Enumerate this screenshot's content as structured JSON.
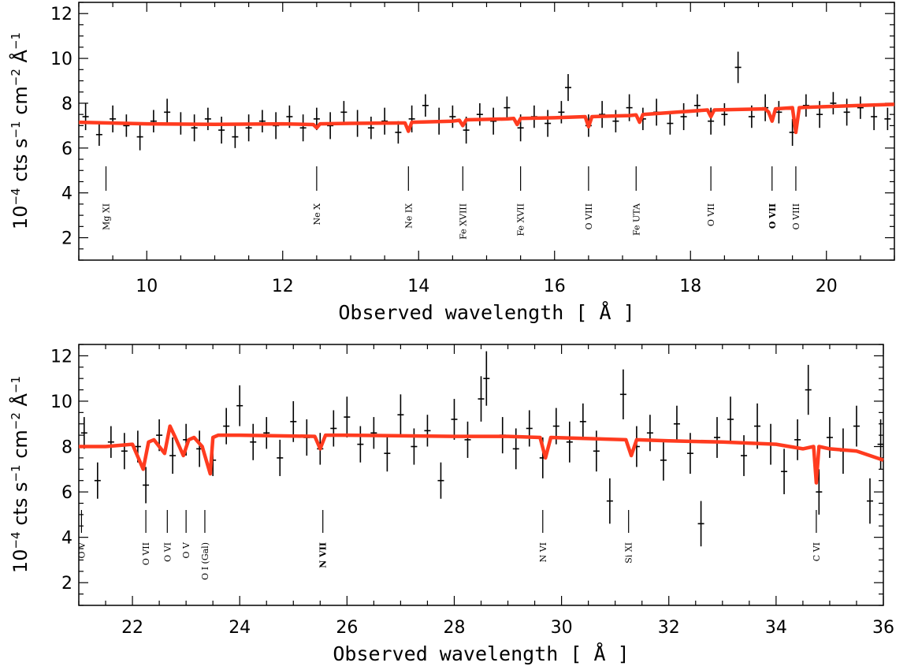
{
  "chart_data": [
    {
      "type": "scatter",
      "xlabel": "Observed wavelength [ Å ]",
      "ylabel": {
        "text": "10",
        "exp": "−4",
        "rest": "cts s",
        "s_exp": "−1",
        "rest2": "cm",
        "cm_exp": "−2",
        "rest3": "Å",
        "a_exp": "−1"
      },
      "xlim": [
        9,
        21
      ],
      "ylim": [
        1,
        12.5
      ],
      "xticks": [
        10,
        12,
        14,
        16,
        18,
        20
      ],
      "yticks": [
        2,
        4,
        6,
        8,
        10,
        12
      ],
      "series": [
        {
          "style": "data-with-errorbars",
          "color": "#000000",
          "x": [
            9.1,
            9.3,
            9.5,
            9.7,
            9.9,
            10.1,
            10.3,
            10.5,
            10.7,
            10.9,
            11.1,
            11.3,
            11.5,
            11.7,
            11.9,
            12.1,
            12.3,
            12.5,
            12.7,
            12.9,
            13.1,
            13.3,
            13.5,
            13.7,
            13.9,
            14.1,
            14.3,
            14.5,
            14.7,
            14.9,
            15.1,
            15.3,
            15.5,
            15.7,
            15.9,
            16.1,
            16.2,
            16.5,
            16.7,
            16.9,
            17.1,
            17.3,
            17.5,
            17.7,
            17.9,
            18.1,
            18.3,
            18.5,
            18.7,
            18.9,
            19.1,
            19.3,
            19.5,
            19.7,
            19.9,
            20.1,
            20.3,
            20.5,
            20.7,
            20.9
          ],
          "y": [
            7.4,
            6.6,
            7.3,
            7.0,
            6.5,
            7.2,
            7.6,
            7.1,
            6.9,
            7.3,
            6.8,
            6.5,
            6.9,
            7.2,
            7.0,
            7.4,
            6.9,
            7.3,
            7.0,
            7.6,
            7.1,
            6.9,
            7.2,
            6.7,
            7.3,
            7.9,
            7.2,
            7.4,
            6.8,
            7.5,
            7.2,
            7.8,
            6.9,
            7.4,
            7.1,
            7.6,
            8.7,
            7.0,
            7.5,
            7.2,
            7.8,
            7.3,
            7.6,
            7.1,
            7.4,
            7.9,
            7.2,
            7.5,
            9.6,
            7.4,
            7.8,
            7.6,
            6.7,
            7.9,
            7.5,
            8.0,
            7.6,
            7.8,
            7.4,
            7.3
          ],
          "err": [
            0.6,
            0.5,
            0.6,
            0.5,
            0.6,
            0.5,
            0.6,
            0.5,
            0.6,
            0.5,
            0.6,
            0.5,
            0.6,
            0.5,
            0.6,
            0.5,
            0.6,
            0.5,
            0.6,
            0.5,
            0.6,
            0.5,
            0.6,
            0.5,
            0.6,
            0.5,
            0.6,
            0.5,
            0.6,
            0.5,
            0.6,
            0.5,
            0.6,
            0.5,
            0.6,
            0.5,
            0.6,
            0.5,
            0.6,
            0.5,
            0.6,
            0.5,
            0.6,
            0.5,
            0.6,
            0.5,
            0.6,
            0.5,
            0.7,
            0.5,
            0.6,
            0.5,
            0.6,
            0.5,
            0.6,
            0.5,
            0.6,
            0.5,
            0.6,
            0.5
          ]
        },
        {
          "style": "model-line",
          "color": "#ff3b1f",
          "x": [
            9.0,
            10.0,
            11.0,
            12.0,
            12.45,
            12.5,
            12.55,
            13.0,
            13.8,
            13.85,
            13.9,
            14.5,
            14.6,
            14.65,
            14.7,
            15.3,
            15.4,
            15.45,
            15.5,
            16.0,
            16.45,
            16.5,
            16.55,
            17.1,
            17.2,
            17.25,
            17.3,
            17.8,
            18.25,
            18.3,
            18.35,
            19.1,
            19.15,
            19.2,
            19.25,
            19.4,
            19.5,
            19.55,
            19.6,
            19.7,
            20.0,
            20.5,
            21.0
          ],
          "y": [
            7.15,
            7.08,
            7.06,
            7.08,
            7.05,
            6.9,
            7.08,
            7.1,
            7.12,
            6.75,
            7.15,
            7.2,
            7.24,
            7.0,
            7.26,
            7.3,
            7.32,
            7.05,
            7.32,
            7.35,
            7.4,
            6.95,
            7.4,
            7.45,
            7.48,
            7.15,
            7.5,
            7.6,
            7.7,
            7.4,
            7.7,
            7.75,
            7.6,
            7.2,
            7.75,
            7.78,
            7.8,
            6.7,
            7.8,
            7.82,
            7.85,
            7.9,
            7.95
          ]
        }
      ],
      "line_markers": [
        {
          "x": 9.4,
          "label": "Mg XI"
        },
        {
          "x": 12.5,
          "label": "Ne X"
        },
        {
          "x": 13.85,
          "label": "Ne IX"
        },
        {
          "x": 14.65,
          "label": "Fe XVIII"
        },
        {
          "x": 15.5,
          "label": "Fe XVII"
        },
        {
          "x": 16.5,
          "label": "O VIII"
        },
        {
          "x": 17.2,
          "label": "Fe UTA"
        },
        {
          "x": 18.3,
          "label": "O VII"
        },
        {
          "x": 19.2,
          "label": "O VII",
          "bold": true
        },
        {
          "x": 19.55,
          "label": "O VIII"
        }
      ]
    },
    {
      "type": "scatter",
      "xlabel": "Observed wavelength [ Å ]",
      "ylabel": {
        "text": "10",
        "exp": "−4",
        "rest": "cts s",
        "s_exp": "−1",
        "rest2": "cm",
        "cm_exp": "−2",
        "rest3": "Å",
        "a_exp": "−1"
      },
      "xlim": [
        21,
        36
      ],
      "ylim": [
        1,
        12.5
      ],
      "xticks": [
        22,
        24,
        26,
        28,
        30,
        32,
        34,
        36
      ],
      "yticks": [
        2,
        4,
        6,
        8,
        10,
        12
      ],
      "series": [
        {
          "style": "data-with-errorbars",
          "color": "#000000",
          "x": [
            21.1,
            21.35,
            21.6,
            21.85,
            22.1,
            22.25,
            22.5,
            22.75,
            23.0,
            23.25,
            23.5,
            23.75,
            24.0,
            24.25,
            24.5,
            24.75,
            25.0,
            25.25,
            25.5,
            25.75,
            26.0,
            26.25,
            26.5,
            26.75,
            27.0,
            27.25,
            27.5,
            27.75,
            28.0,
            28.25,
            28.5,
            28.6,
            28.9,
            29.15,
            29.4,
            29.65,
            29.9,
            30.15,
            30.4,
            30.65,
            30.9,
            31.15,
            31.4,
            31.65,
            31.9,
            32.15,
            32.4,
            32.6,
            32.9,
            33.15,
            33.4,
            33.65,
            33.9,
            34.15,
            34.4,
            34.6,
            34.8,
            35.0,
            35.25,
            35.5,
            35.75,
            35.95
          ],
          "y": [
            8.6,
            6.5,
            8.2,
            7.8,
            8.0,
            6.3,
            8.5,
            7.6,
            8.3,
            7.9,
            7.4,
            8.9,
            9.8,
            8.2,
            8.6,
            7.5,
            9.1,
            8.4,
            7.9,
            8.8,
            9.3,
            8.1,
            8.6,
            7.7,
            9.4,
            8.0,
            8.7,
            6.5,
            9.2,
            8.3,
            10.1,
            11.0,
            8.5,
            7.9,
            8.8,
            7.5,
            8.9,
            8.2,
            9.1,
            7.8,
            5.6,
            10.3,
            8.0,
            8.6,
            7.4,
            9.0,
            7.7,
            4.6,
            8.4,
            9.2,
            7.6,
            8.9,
            8.1,
            6.9,
            8.3,
            10.5,
            6.0,
            8.4,
            7.8,
            8.9,
            5.6,
            8.1
          ],
          "err": [
            0.7,
            0.8,
            0.7,
            0.8,
            0.7,
            0.8,
            0.7,
            0.8,
            0.7,
            0.8,
            0.7,
            0.8,
            0.9,
            0.8,
            0.7,
            0.8,
            0.9,
            0.8,
            0.7,
            0.8,
            0.9,
            0.8,
            0.7,
            0.8,
            0.9,
            0.8,
            0.7,
            0.8,
            0.9,
            0.8,
            1.0,
            1.2,
            0.8,
            0.9,
            0.8,
            0.9,
            0.8,
            0.9,
            0.8,
            0.9,
            1.0,
            1.1,
            0.9,
            0.8,
            0.9,
            0.8,
            0.9,
            1.0,
            0.9,
            1.0,
            0.9,
            1.0,
            0.9,
            1.0,
            0.9,
            1.1,
            1.0,
            0.9,
            1.0,
            0.9,
            1.0,
            1.1
          ]
        },
        {
          "style": "model-line",
          "color": "#ff3b1f",
          "x": [
            21.0,
            21.5,
            22.0,
            22.2,
            22.3,
            22.4,
            22.6,
            22.7,
            22.8,
            22.95,
            23.05,
            23.15,
            23.3,
            23.45,
            23.5,
            23.6,
            24.0,
            25.4,
            25.5,
            25.6,
            26.0,
            28.0,
            29.0,
            29.6,
            29.7,
            29.8,
            30.5,
            31.2,
            31.3,
            31.4,
            32.0,
            33.0,
            34.0,
            34.5,
            34.7,
            34.75,
            34.8,
            35.0,
            35.5,
            36.0
          ],
          "y": [
            8.0,
            8.0,
            8.1,
            7.0,
            8.2,
            8.3,
            7.7,
            8.9,
            8.4,
            7.6,
            8.3,
            8.4,
            8.0,
            6.8,
            8.4,
            8.5,
            8.5,
            8.45,
            7.9,
            8.5,
            8.5,
            8.45,
            8.45,
            8.4,
            7.5,
            8.4,
            8.35,
            8.3,
            7.6,
            8.3,
            8.25,
            8.2,
            8.1,
            7.9,
            8.0,
            6.4,
            8.0,
            7.9,
            7.8,
            7.4
          ]
        }
      ],
      "line_markers": [
        {
          "x": 21.05,
          "label": "O V"
        },
        {
          "x": 22.25,
          "label": "O VII"
        },
        {
          "x": 22.65,
          "label": "O VI"
        },
        {
          "x": 23.0,
          "label": "O V"
        },
        {
          "x": 23.35,
          "label": "O I (Gal)"
        },
        {
          "x": 25.55,
          "label": "N VII",
          "bold": true
        },
        {
          "x": 29.65,
          "label": "N VI"
        },
        {
          "x": 31.25,
          "label": "Si XI"
        },
        {
          "x": 34.75,
          "label": "C VI"
        }
      ]
    }
  ]
}
